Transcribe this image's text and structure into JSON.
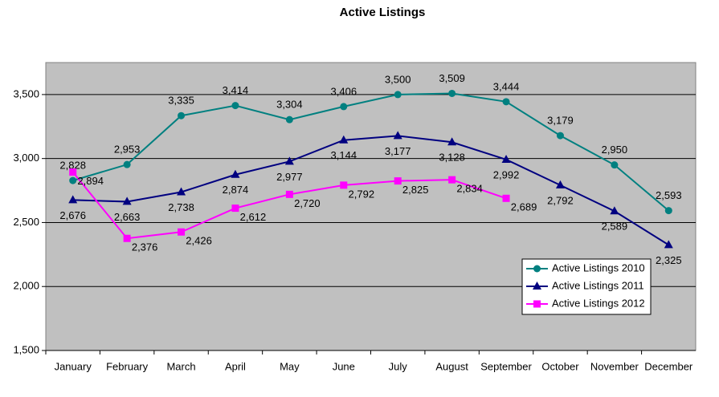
{
  "chart_data": {
    "type": "line",
    "title": "Active Listings",
    "categories": [
      "January",
      "February",
      "March",
      "April",
      "May",
      "June",
      "July",
      "August",
      "September",
      "October",
      "November",
      "December"
    ],
    "series": [
      {
        "name": "Active Listings 2010",
        "color": "#008080",
        "marker": "circle",
        "values": [
          2828,
          2953,
          3335,
          3414,
          3304,
          3406,
          3500,
          3509,
          3444,
          3179,
          2950,
          2593
        ],
        "value_labels": [
          "2,828",
          "2,953",
          "3,335",
          "3,414",
          "3,304",
          "3,406",
          "3,500",
          "3,509",
          "3,444",
          "3,179",
          "2,950",
          "2,593"
        ]
      },
      {
        "name": "Active Listings 2011",
        "color": "#000080",
        "marker": "triangle",
        "values": [
          2676,
          2663,
          2738,
          2874,
          2977,
          3144,
          3177,
          3128,
          2992,
          2792,
          2589,
          2325
        ],
        "value_labels": [
          "2,676",
          "2,663",
          "2,738",
          "2,874",
          "2,977",
          "3,144",
          "3,177",
          "3,128",
          "2,992",
          "2,792",
          "2,589",
          "2,325"
        ]
      },
      {
        "name": "Active Listings 2012",
        "color": "#ff00ff",
        "marker": "square",
        "values": [
          2894,
          2376,
          2426,
          2612,
          2720,
          2792,
          2825,
          2834,
          2689,
          null,
          null,
          null
        ],
        "value_labels": [
          "2,894",
          "2,376",
          "2,426",
          "2,612",
          "2,720",
          "2,792",
          "2,825",
          "2,834",
          "2,689",
          null,
          null,
          null
        ]
      }
    ],
    "ylim": [
      1500,
      3750
    ],
    "yticks": [
      {
        "value": 1500,
        "label": "1,500"
      },
      {
        "value": 2000,
        "label": "2,000"
      },
      {
        "value": 2500,
        "label": "2,500"
      },
      {
        "value": 3000,
        "label": "3,000"
      },
      {
        "value": 3500,
        "label": "3,500"
      }
    ],
    "grid": true,
    "legend": "lower right",
    "background": "#c0c0c0"
  }
}
